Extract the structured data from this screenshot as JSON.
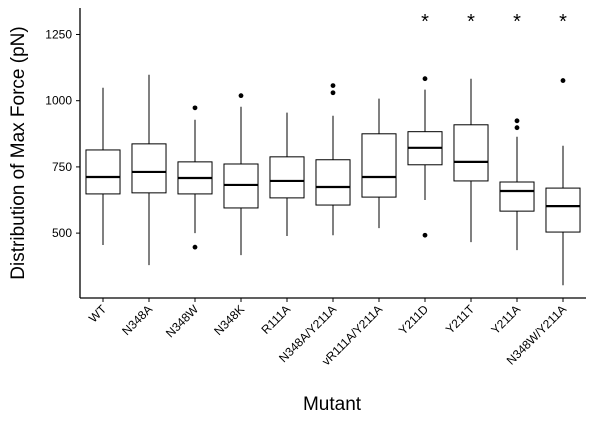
{
  "chart_data": {
    "type": "box",
    "y_label": "Distribution of Max Force (pN)",
    "x_label": "Mutant",
    "categories": [
      "WT",
      "N348A",
      "N348W",
      "N348K",
      "R111A",
      "N348A/Y211A",
      "vR111A/Y211A",
      "Y211D",
      "Y211T",
      "Y211A",
      "N348W/Y211A"
    ],
    "whisker_high": [
      1049,
      1098,
      928,
      977,
      955,
      943,
      1008,
      1042,
      1083,
      864,
      830
    ],
    "q3": [
      814,
      837,
      769,
      761,
      788,
      777,
      875,
      883,
      909,
      693,
      670
    ],
    "median": [
      712,
      731,
      708,
      682,
      697,
      674,
      712,
      822,
      769,
      659,
      602
    ],
    "q1": [
      648,
      652,
      648,
      595,
      633,
      606,
      636,
      758,
      697,
      583,
      504
    ],
    "whisker_low": [
      455,
      379,
      500,
      417,
      489,
      492,
      519,
      625,
      466,
      436,
      303
    ],
    "outliers": [
      [],
      [],
      [
        973,
        447
      ],
      [
        1019
      ],
      [],
      [
        1057,
        1030
      ],
      [],
      [
        1083,
        492
      ],
      [],
      [
        924,
        898
      ],
      [
        1076
      ]
    ],
    "labels": [
      null,
      null,
      null,
      null,
      null,
      null,
      null,
      "*",
      "*",
      "*",
      "*"
    ],
    "color": "#000000",
    "ylim": [
      255,
      1350
    ],
    "yticks": [
      500,
      750,
      1000,
      1250
    ]
  }
}
